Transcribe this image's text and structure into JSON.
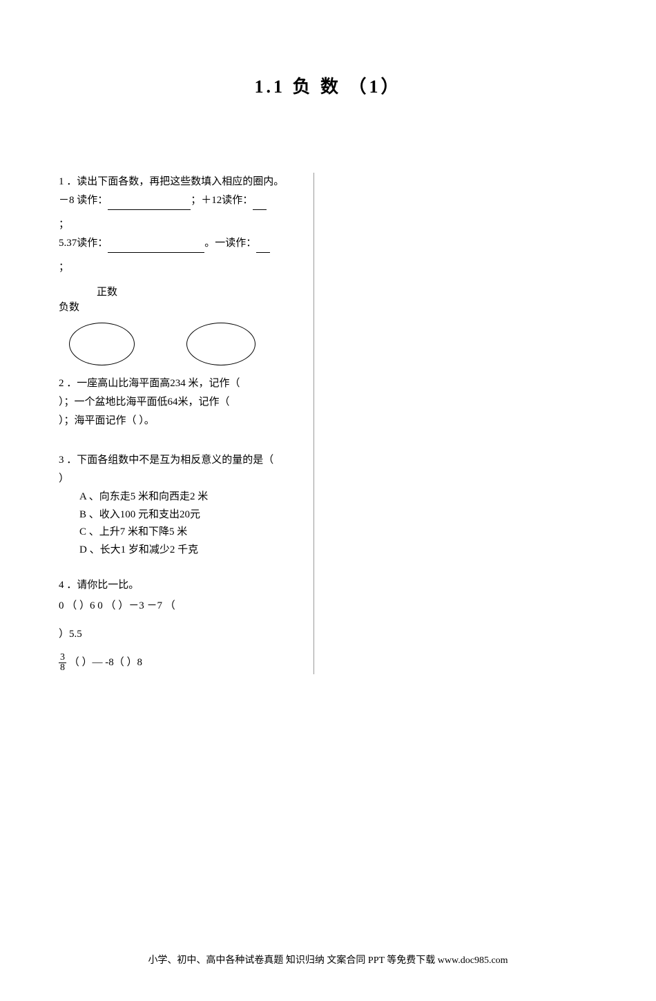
{
  "title": "1.1  负 数 （1）",
  "q1": {
    "intro": "1 ．读出下面各数，再把这些数填入相应的圈内。",
    "line1_a": "－8   读作：",
    "line1_b": "；＋12读作：",
    "semicolon1": "；",
    "line2_a": "5.37读作：",
    "line2_b": "。一读作：",
    "semicolon2": "；",
    "pos_label": "正数",
    "neg_label": "负数"
  },
  "q2": {
    "line1": "2 ．一座高山比海平面高234 米，记作（",
    "line2": "）；一个盆地比海平面低64米，记作（",
    "line3": "  ）；海平面记作（         ）。"
  },
  "q3": {
    "intro": "3 ．下面各组数中不是互为相反意义的量的是（",
    "close": "）",
    "optA": "A 、向东走5 米和向西走2 米",
    "optB": "B 、收入100 元和支出20元",
    "optC": "C 、上升7 米和下降5 米",
    "optD": "D 、长大1 岁和减少2 千克"
  },
  "q4": {
    "intro": "4 ．请你比一比。",
    "row1": "0 （   ）6    0 （   ）－3    －7 （",
    "row2": "）5.5",
    "frac_num": "3",
    "frac_den": "8",
    "row3_mid": "   （   ）—         -8（   ）8"
  },
  "footer": "小学、初中、高中各种试卷真题 知识归纳 文案合同 PPT 等免费下载  www.doc985.com"
}
